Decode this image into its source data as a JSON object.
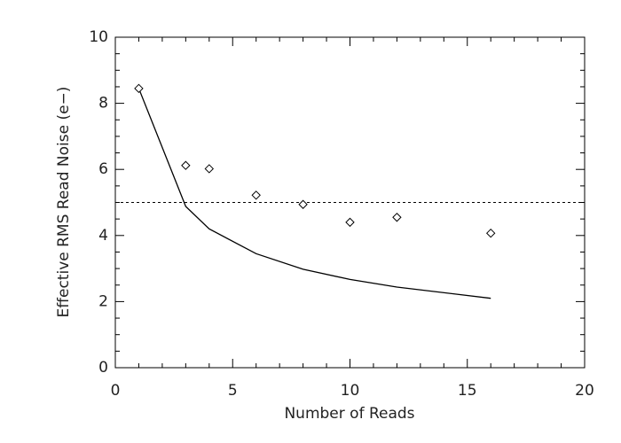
{
  "chart_data": {
    "type": "line",
    "xlabel": "Number of Reads",
    "ylabel": "Effective RMS Read Noise (e−)",
    "x": [
      1,
      3,
      4,
      6,
      8,
      10,
      12,
      16
    ],
    "series": [
      {
        "style": "line",
        "color": "#000000",
        "values": [
          8.45,
          4.88,
          4.2,
          3.45,
          2.98,
          2.67,
          2.44,
          2.1
        ]
      },
      {
        "style": "diamond",
        "color": "#000000",
        "values": [
          8.45,
          6.12,
          6.02,
          5.22,
          4.94,
          4.4,
          4.55,
          4.07
        ]
      }
    ],
    "hlines": [
      {
        "value": 5,
        "dash": "dashed",
        "color": "#000000"
      }
    ],
    "xlim": [
      0,
      20
    ],
    "xticks": [
      0,
      5,
      10,
      15,
      20
    ],
    "ylim": [
      0,
      10
    ],
    "yticks": [
      0,
      2,
      4,
      6,
      8,
      10
    ],
    "grid": false
  }
}
